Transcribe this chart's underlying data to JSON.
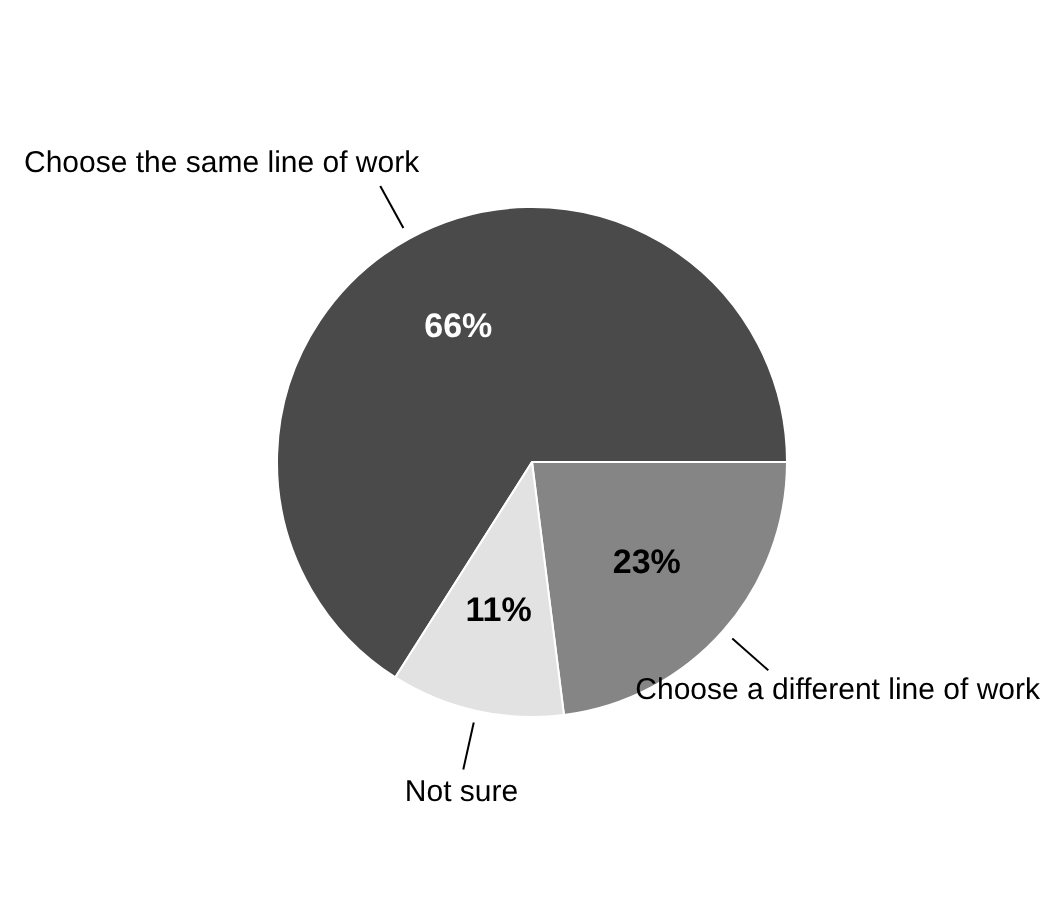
{
  "chart_data": {
    "type": "pie",
    "categories": [
      "Choose the same line of work",
      "Choose a different line of work",
      "Not sure"
    ],
    "values": [
      66,
      23,
      11
    ],
    "value_labels": [
      "66%",
      "23%",
      "11%"
    ],
    "colors": [
      "#4a4a4a",
      "#858585",
      "#e2e2e2"
    ],
    "legend": false
  }
}
